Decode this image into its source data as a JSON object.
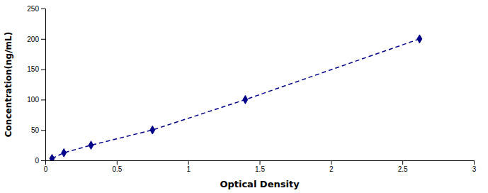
{
  "chart_data": {
    "type": "line",
    "xlabel": "Optical Density",
    "ylabel": "Concentration(ng/mL)",
    "x": [
      0.047,
      0.13,
      0.32,
      0.75,
      1.4,
      2.62
    ],
    "values": [
      3.13,
      12.5,
      25.0,
      50.0,
      100.0,
      200.0
    ],
    "color": "#00008B",
    "marker": "diamond",
    "line_style": "dashed",
    "xlim": [
      0,
      3
    ],
    "ylim": [
      0,
      250
    ],
    "xticks": [
      0,
      0.5,
      1,
      1.5,
      2,
      2.5,
      3
    ],
    "yticks": [
      0,
      50,
      100,
      150,
      200,
      250
    ]
  }
}
